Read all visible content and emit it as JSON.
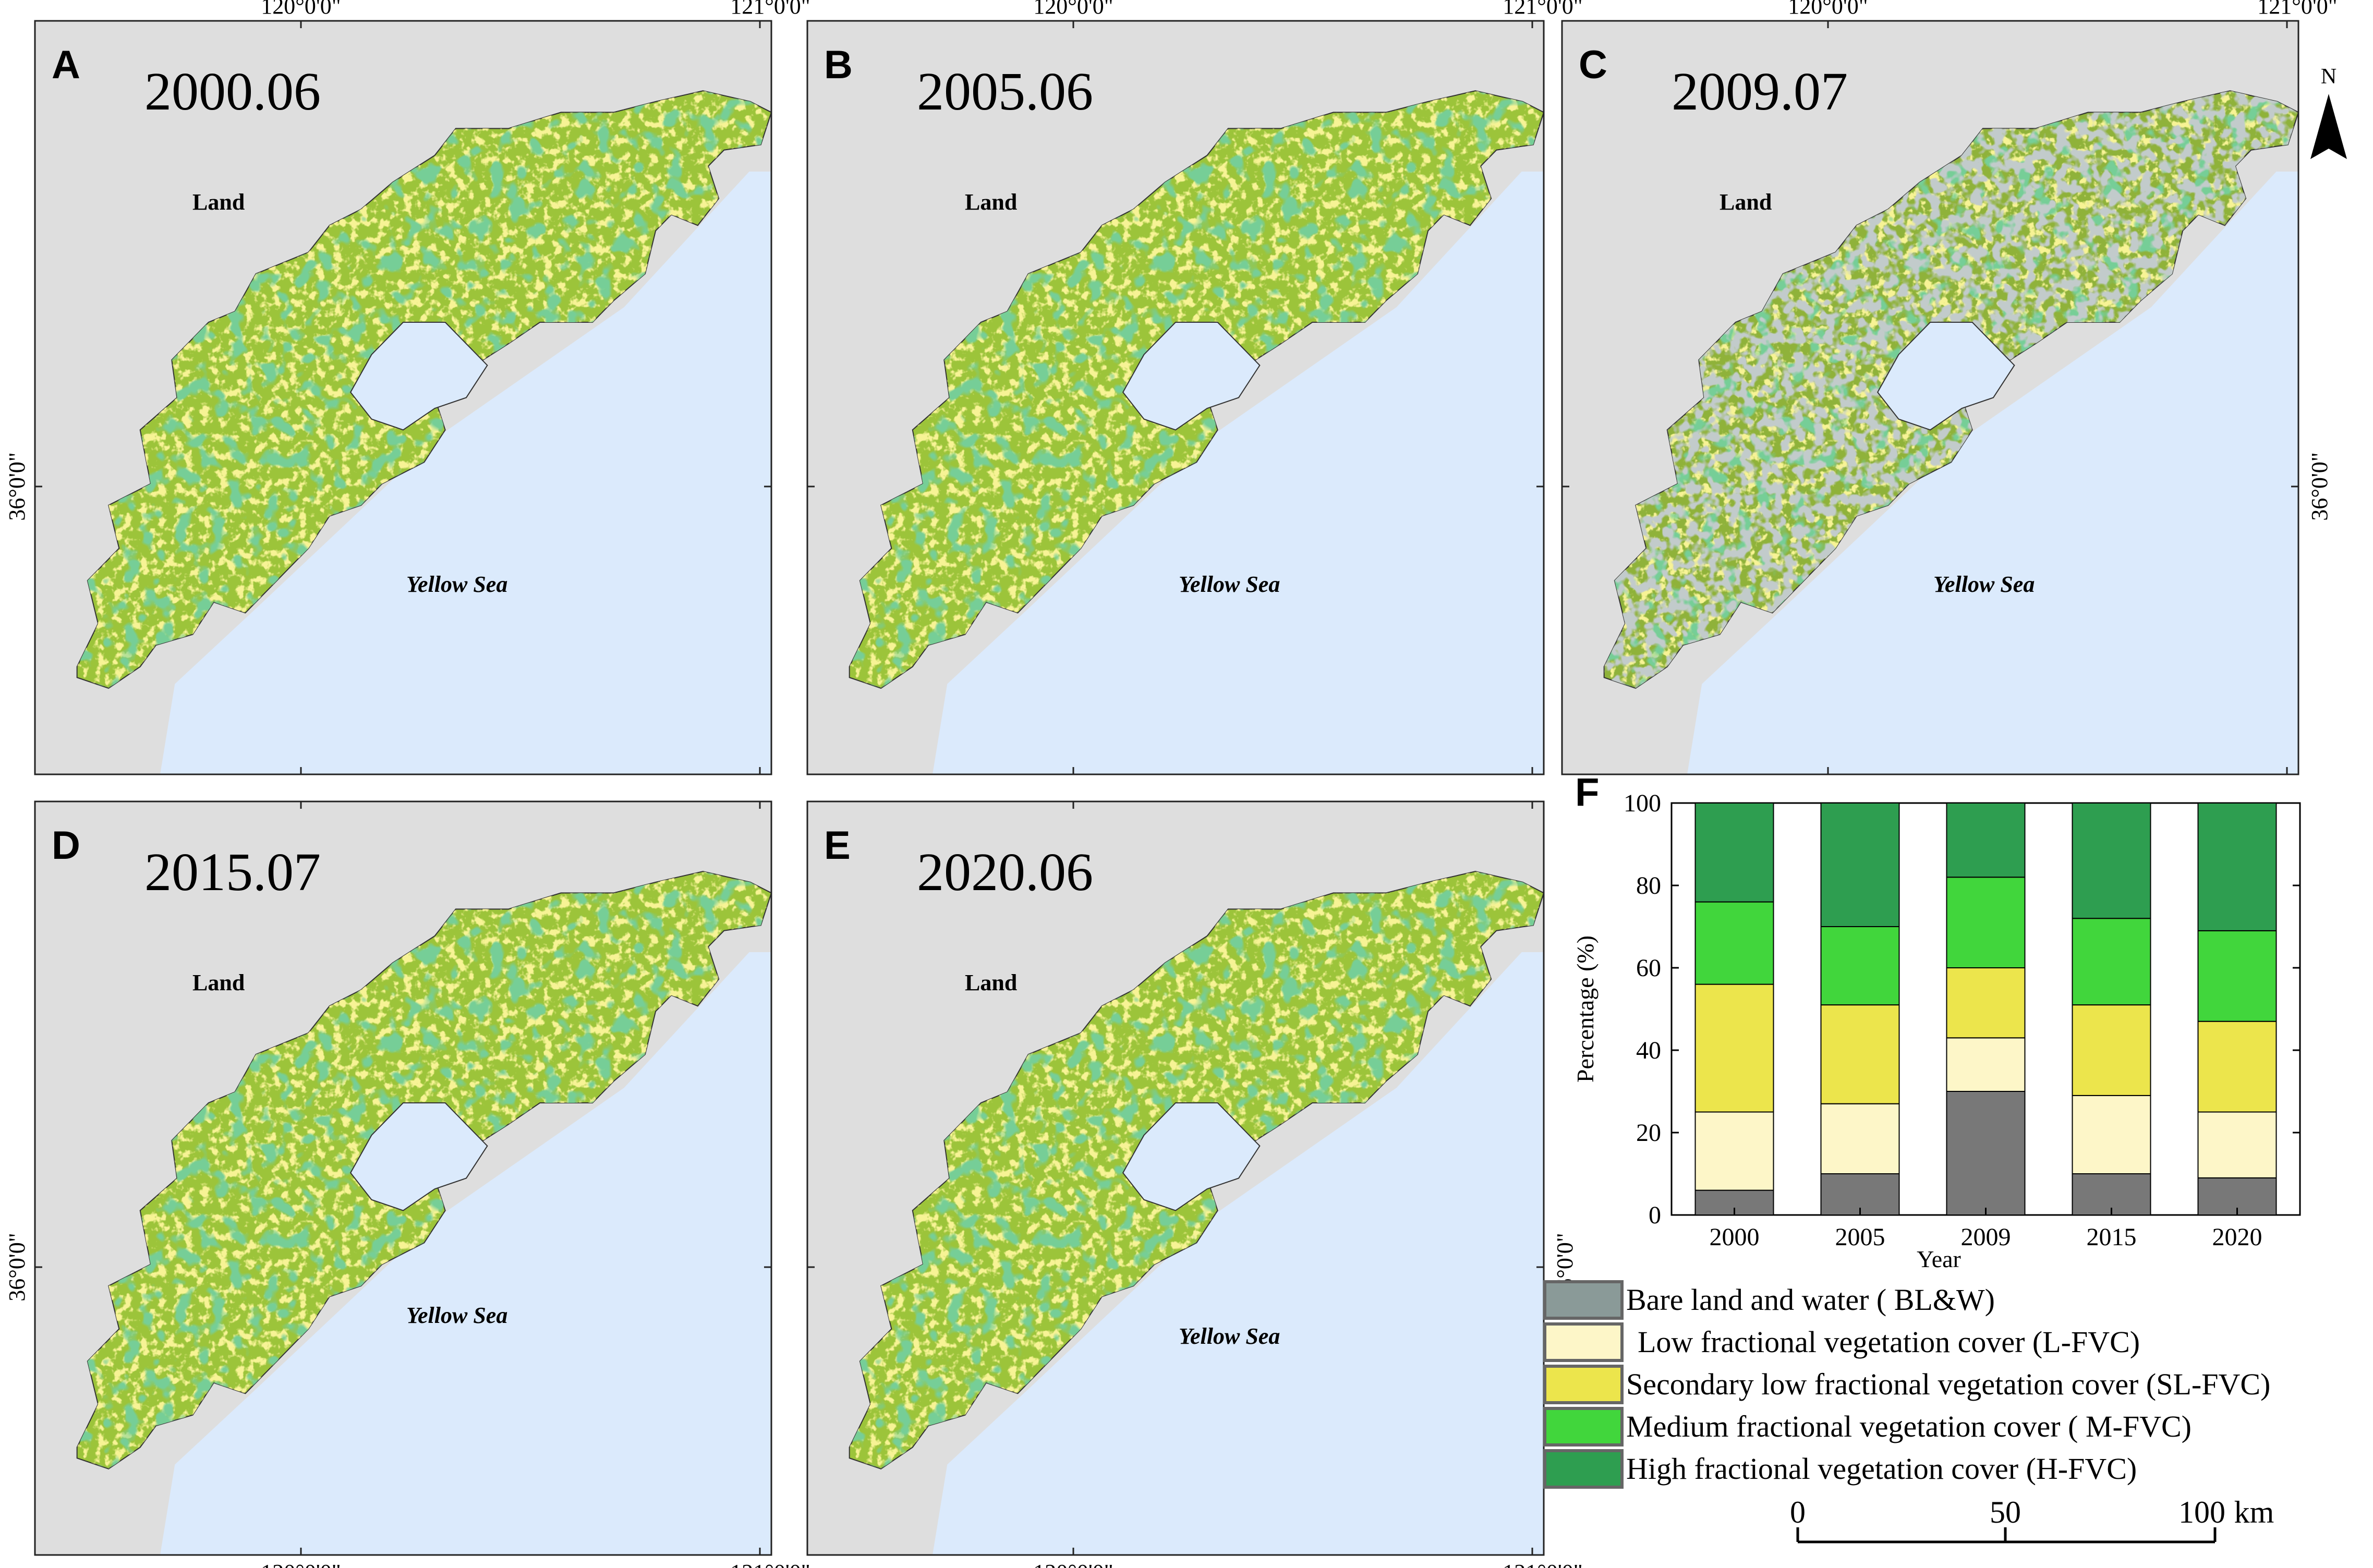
{
  "panels": [
    {
      "letter": "A",
      "date": "2000.06",
      "land": "Land",
      "sea": "Yellow Sea"
    },
    {
      "letter": "B",
      "date": "2005.06",
      "land": "Land",
      "sea": "Yellow Sea"
    },
    {
      "letter": "C",
      "date": "2009.07",
      "land": "Land",
      "sea": "Yellow Sea"
    },
    {
      "letter": "D",
      "date": "2015.07",
      "land": "Land",
      "sea": "Yellow Sea"
    },
    {
      "letter": "E",
      "date": "2020.06",
      "land": "Land",
      "sea": "Yellow Sea"
    }
  ],
  "map_labels": {
    "lon_120": "120°0'0\"",
    "lon_121": "121°0'0\"",
    "lat_36": "36°0'0\""
  },
  "north_arrow": {
    "label": "N"
  },
  "colors": {
    "land_bg": "#dedede",
    "sea": "#dbeafc",
    "bare": "#8a9a98",
    "low": "#fdf6c8",
    "secondary": "#ece54c",
    "medium": "#41d63c",
    "high": "#2e9e50",
    "bar_bare": "#787878"
  },
  "chart_data": {
    "type": "bar",
    "stacked": true,
    "panel_letter": "F",
    "categories": [
      "2000",
      "2005",
      "2009",
      "2015",
      "2020"
    ],
    "series": [
      {
        "name": "Bare land and water ( BL&W)",
        "values": [
          6,
          10,
          30,
          10,
          9
        ]
      },
      {
        "name": "Low fractional vegetation cover (L-FVC)",
        "values": [
          19,
          17,
          13,
          19,
          16
        ]
      },
      {
        "name": "Secondary low fractional vegetation cover (SL-FVC)",
        "values": [
          31,
          24,
          17,
          22,
          22
        ]
      },
      {
        "name": "Medium fractional vegetation cover ( M-FVC)",
        "values": [
          20,
          19,
          22,
          21,
          22
        ]
      },
      {
        "name": "High fractional vegetation cover (H-FVC)",
        "values": [
          24,
          30,
          18,
          28,
          31
        ]
      }
    ],
    "xlabel": "Year",
    "ylabel": "Percentage (%)",
    "ylim": [
      0,
      100
    ],
    "yticks": [
      0,
      20,
      40,
      60,
      80,
      100
    ],
    "legend_placement": "bottom"
  },
  "scale_bar": {
    "ticks": [
      "0",
      "50",
      "100"
    ],
    "unit": "km"
  }
}
